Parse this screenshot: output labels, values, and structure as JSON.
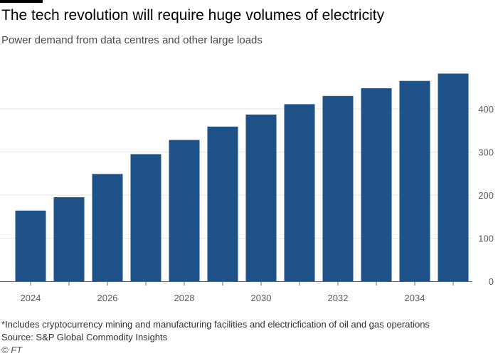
{
  "header": {
    "title": "The tech revolution will require huge volumes of electricity",
    "subtitle": "Power demand from data centres and other large loads"
  },
  "footer": {
    "note": "*Includes cryptocurrency mining and manufacturing facilities and electricfication of oil and gas operations",
    "source": "Source: S&P Global Commodity Insights",
    "credit": "© FT"
  },
  "colors": {
    "bar": "#1f5189",
    "grid": "#e9e5e0",
    "axis": "#66605c"
  },
  "chart_data": {
    "type": "bar",
    "title": "The tech revolution will require huge volumes of electricity",
    "subtitle": "Power demand from data centres and other large loads",
    "xlabel": "",
    "ylabel": "",
    "categories": [
      "2024",
      "2025",
      "2026",
      "2027",
      "2028",
      "2029",
      "2030",
      "2031",
      "2032",
      "2033",
      "2034",
      "2035"
    ],
    "values": [
      164,
      195,
      249,
      295,
      328,
      359,
      387,
      411,
      430,
      448,
      465,
      482
    ],
    "x_tick_labels": [
      "2024",
      "2026",
      "2028",
      "2030",
      "2032",
      "2034"
    ],
    "y_ticks": [
      0,
      100,
      200,
      300,
      400
    ],
    "ylim": [
      0,
      500
    ],
    "y_axis_side": "right",
    "grid": true,
    "legend": "none"
  }
}
